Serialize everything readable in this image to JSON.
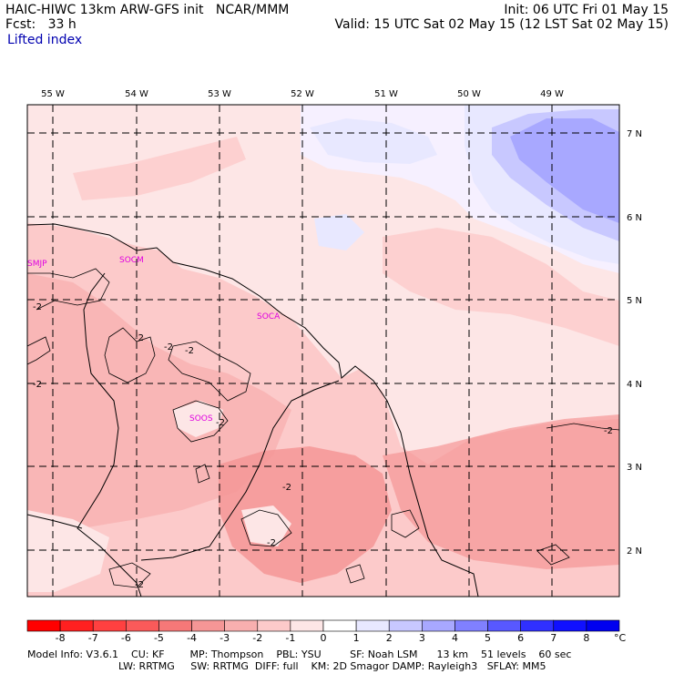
{
  "header": {
    "model_line": "HAIC-HIWC 13km ARW-GFS init   NCAR/MMM",
    "fcst_line": "Fcst:   33 h",
    "init_line": "Init: 06 UTC Fri 01 May 15",
    "valid_line": "Valid: 15 UTC Sat 02 May 15 (12 LST Sat 02 May 15)",
    "field_name": "Lifted index"
  },
  "map": {
    "lon_labels": [
      "55 W",
      "54 W",
      "53 W",
      "52 W",
      "51 W",
      "50 W",
      "49 W"
    ],
    "lat_labels": [
      "7 N",
      "6 N",
      "5 N",
      "4 N",
      "3 N",
      "2 N"
    ],
    "stations": [
      "SMJP",
      "SOCM",
      "SOCA",
      "SOOS"
    ],
    "contour_labels": [
      "-2",
      "-2",
      "-2",
      "-2",
      "-2",
      "-2",
      "-2",
      "-2",
      "-2",
      "-2"
    ]
  },
  "colorbar": {
    "ticks": [
      "-8",
      "-7",
      "-6",
      "-5",
      "-4",
      "-3",
      "-2",
      "-1",
      "0",
      "1",
      "2",
      "3",
      "4",
      "5",
      "6",
      "7",
      "8"
    ],
    "unit": "°C",
    "colors": [
      "#ff0000",
      "#ff2020",
      "#ff4040",
      "#fa5a5a",
      "#f57878",
      "#f59696",
      "#f8afaf",
      "#fccaca",
      "#fde6e6",
      "#ffffff",
      "#e8e8ff",
      "#c8c8ff",
      "#a8a8ff",
      "#8080ff",
      "#5858ff",
      "#3030ff",
      "#1010ff",
      "#0000f0"
    ]
  },
  "colors": {
    "very_light_pink": "#fde6e6",
    "light_pink": "#fccaca",
    "pink": "#f8afaf",
    "salmon": "#f59696",
    "lavender": "#e8e8ff",
    "light_blue": "#c8c8ff",
    "blue": "#a8a8ff",
    "station": "#e000e0"
  },
  "footer": {
    "line1": "Model Info: V3.6.1    CU: KF        MP: Thompson    PBL: YSU         SF: Noah LSM      13 km    51 levels    60 sec",
    "line2": "LW: RRTMG     SW: RRTMG  DIFF: full    KM: 2D Smagor DAMP: Rayleigh3   SFLAY: MM5"
  }
}
